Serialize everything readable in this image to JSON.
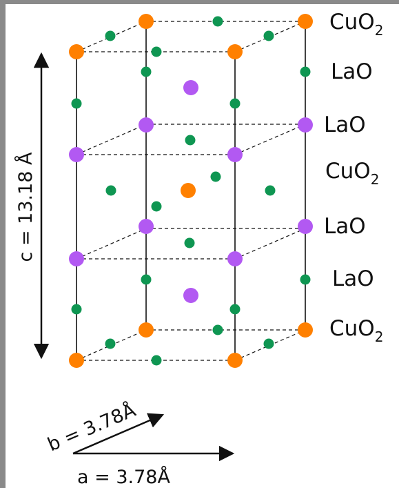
{
  "colors": {
    "frame": "#8a8a8a",
    "background": "#ffffff",
    "copper": "#ff8000",
    "lanthanum": "#b259f2",
    "oxygen": "#0f9652",
    "line": "#111111"
  },
  "icons": {
    "copper_atom": "orange-circle",
    "lanthanum_atom": "purple-circle",
    "oxygen_atom": "green-circle"
  },
  "layers": [
    {
      "base": "CuO",
      "sub": "2"
    },
    {
      "base": "LaO",
      "sub": ""
    },
    {
      "base": "LaO",
      "sub": ""
    },
    {
      "base": "CuO",
      "sub": "2"
    },
    {
      "base": "LaO",
      "sub": ""
    },
    {
      "base": "LaO",
      "sub": ""
    },
    {
      "base": "CuO",
      "sub": "2"
    }
  ],
  "lattice": {
    "c_label": "c = 13.18 Å",
    "b_label": "b = 3.78Å",
    "a_label": "a = 3.78Å"
  }
}
